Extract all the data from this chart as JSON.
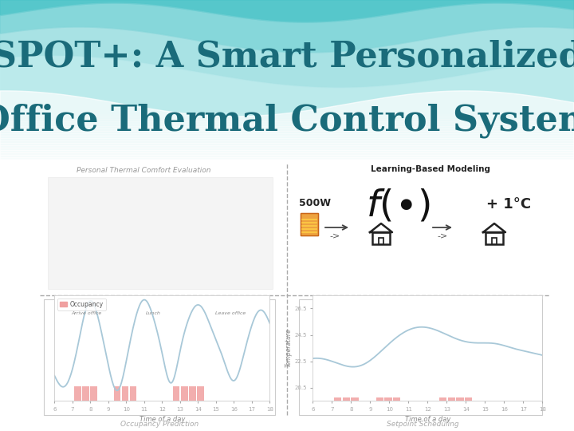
{
  "title_line1": "SPOT+: A Smart Personalized",
  "title_line2": "Office Thermal Control System",
  "title_color": "#1a6b7a",
  "title_fontsize": 32,
  "section_label_left": "Personal Thermal Comfort Evaluation",
  "section_label_right": "Learning-Based Modeling",
  "section_label_bottom_left": "Occupancy Prediction",
  "section_label_bottom_right": "Setpoint Scheduling",
  "power_label": "500W",
  "plus_label": "+ 1°C",
  "occ_legend": "Occupancy",
  "occ_xlabel": "Time of a day",
  "occ_annotations": [
    "Arrive office",
    "Lunch",
    "Leave office"
  ],
  "temp_xlabel": "Time of a day",
  "temp_ylabel": "Temperature",
  "temp_yticks": [
    20.5,
    22.5,
    24.5,
    26.5
  ],
  "time_ticks": [
    6,
    7,
    8,
    9,
    10,
    11,
    12,
    13,
    14,
    15,
    16,
    17,
    18
  ],
  "line_color": "#a8c8d8",
  "bar_color": "#f0a0a0",
  "wave_color1": "#7dd8dc",
  "wave_color2": "#aae6e8",
  "wave_color3": "#cceef0"
}
